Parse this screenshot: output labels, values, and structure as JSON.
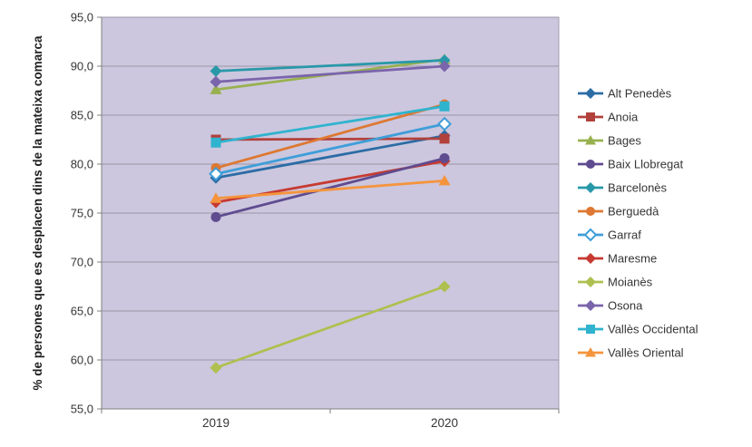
{
  "chart_data": {
    "type": "line",
    "title": "",
    "xlabel": "",
    "ylabel": "% de persones que es desplacen dins de la mateixa comarca",
    "categories": [
      "2019",
      "2020"
    ],
    "ylim": [
      55,
      95
    ],
    "ytick_step": 5,
    "ytick_labels": [
      "95,0",
      "90,0",
      "85,0",
      "80,0",
      "75,0",
      "70,0",
      "65,0",
      "60,0",
      "55,0"
    ],
    "grid": true,
    "legend_position": "right",
    "colors": {
      "plot_background": "#CCC7DE",
      "gridline": "#9C96A6",
      "plot_border": "#A49EB0",
      "axis_line": "#7F7F7F",
      "text": "#353535"
    },
    "series": [
      {
        "name": "Alt Penedès",
        "color": "#2B6CA5",
        "marker": "diamond",
        "values": [
          78.6,
          82.9
        ]
      },
      {
        "name": "Anoia",
        "color": "#B2413C",
        "marker": "square",
        "values": [
          82.5,
          82.6
        ]
      },
      {
        "name": "Bages",
        "color": "#98B14E",
        "marker": "triangle",
        "values": [
          87.6,
          90.7
        ]
      },
      {
        "name": "Baix Llobregat",
        "color": "#5F4B8F",
        "marker": "circle",
        "values": [
          74.6,
          80.6
        ]
      },
      {
        "name": "Barcelonès",
        "color": "#2898A8",
        "marker": "diamond",
        "values": [
          89.5,
          90.6
        ]
      },
      {
        "name": "Berguedà",
        "color": "#DE7832",
        "marker": "circle",
        "values": [
          79.6,
          86.1
        ]
      },
      {
        "name": "Garraf",
        "color": "#3E9ED9",
        "marker": "diamond-open",
        "values": [
          79.0,
          84.1
        ]
      },
      {
        "name": "Maresme",
        "color": "#C63A31",
        "marker": "diamond",
        "values": [
          76.1,
          80.3
        ]
      },
      {
        "name": "Moianès",
        "color": "#AEC04F",
        "marker": "diamond",
        "values": [
          59.2,
          67.5
        ]
      },
      {
        "name": "Osona",
        "color": "#7A64AB",
        "marker": "diamond",
        "values": [
          88.4,
          90.0
        ]
      },
      {
        "name": "Vallès Occidental",
        "color": "#2FB3CE",
        "marker": "square",
        "values": [
          82.2,
          85.9
        ]
      },
      {
        "name": "Vallès Oriental",
        "color": "#F5943C",
        "marker": "triangle",
        "values": [
          76.5,
          78.3
        ]
      }
    ]
  }
}
